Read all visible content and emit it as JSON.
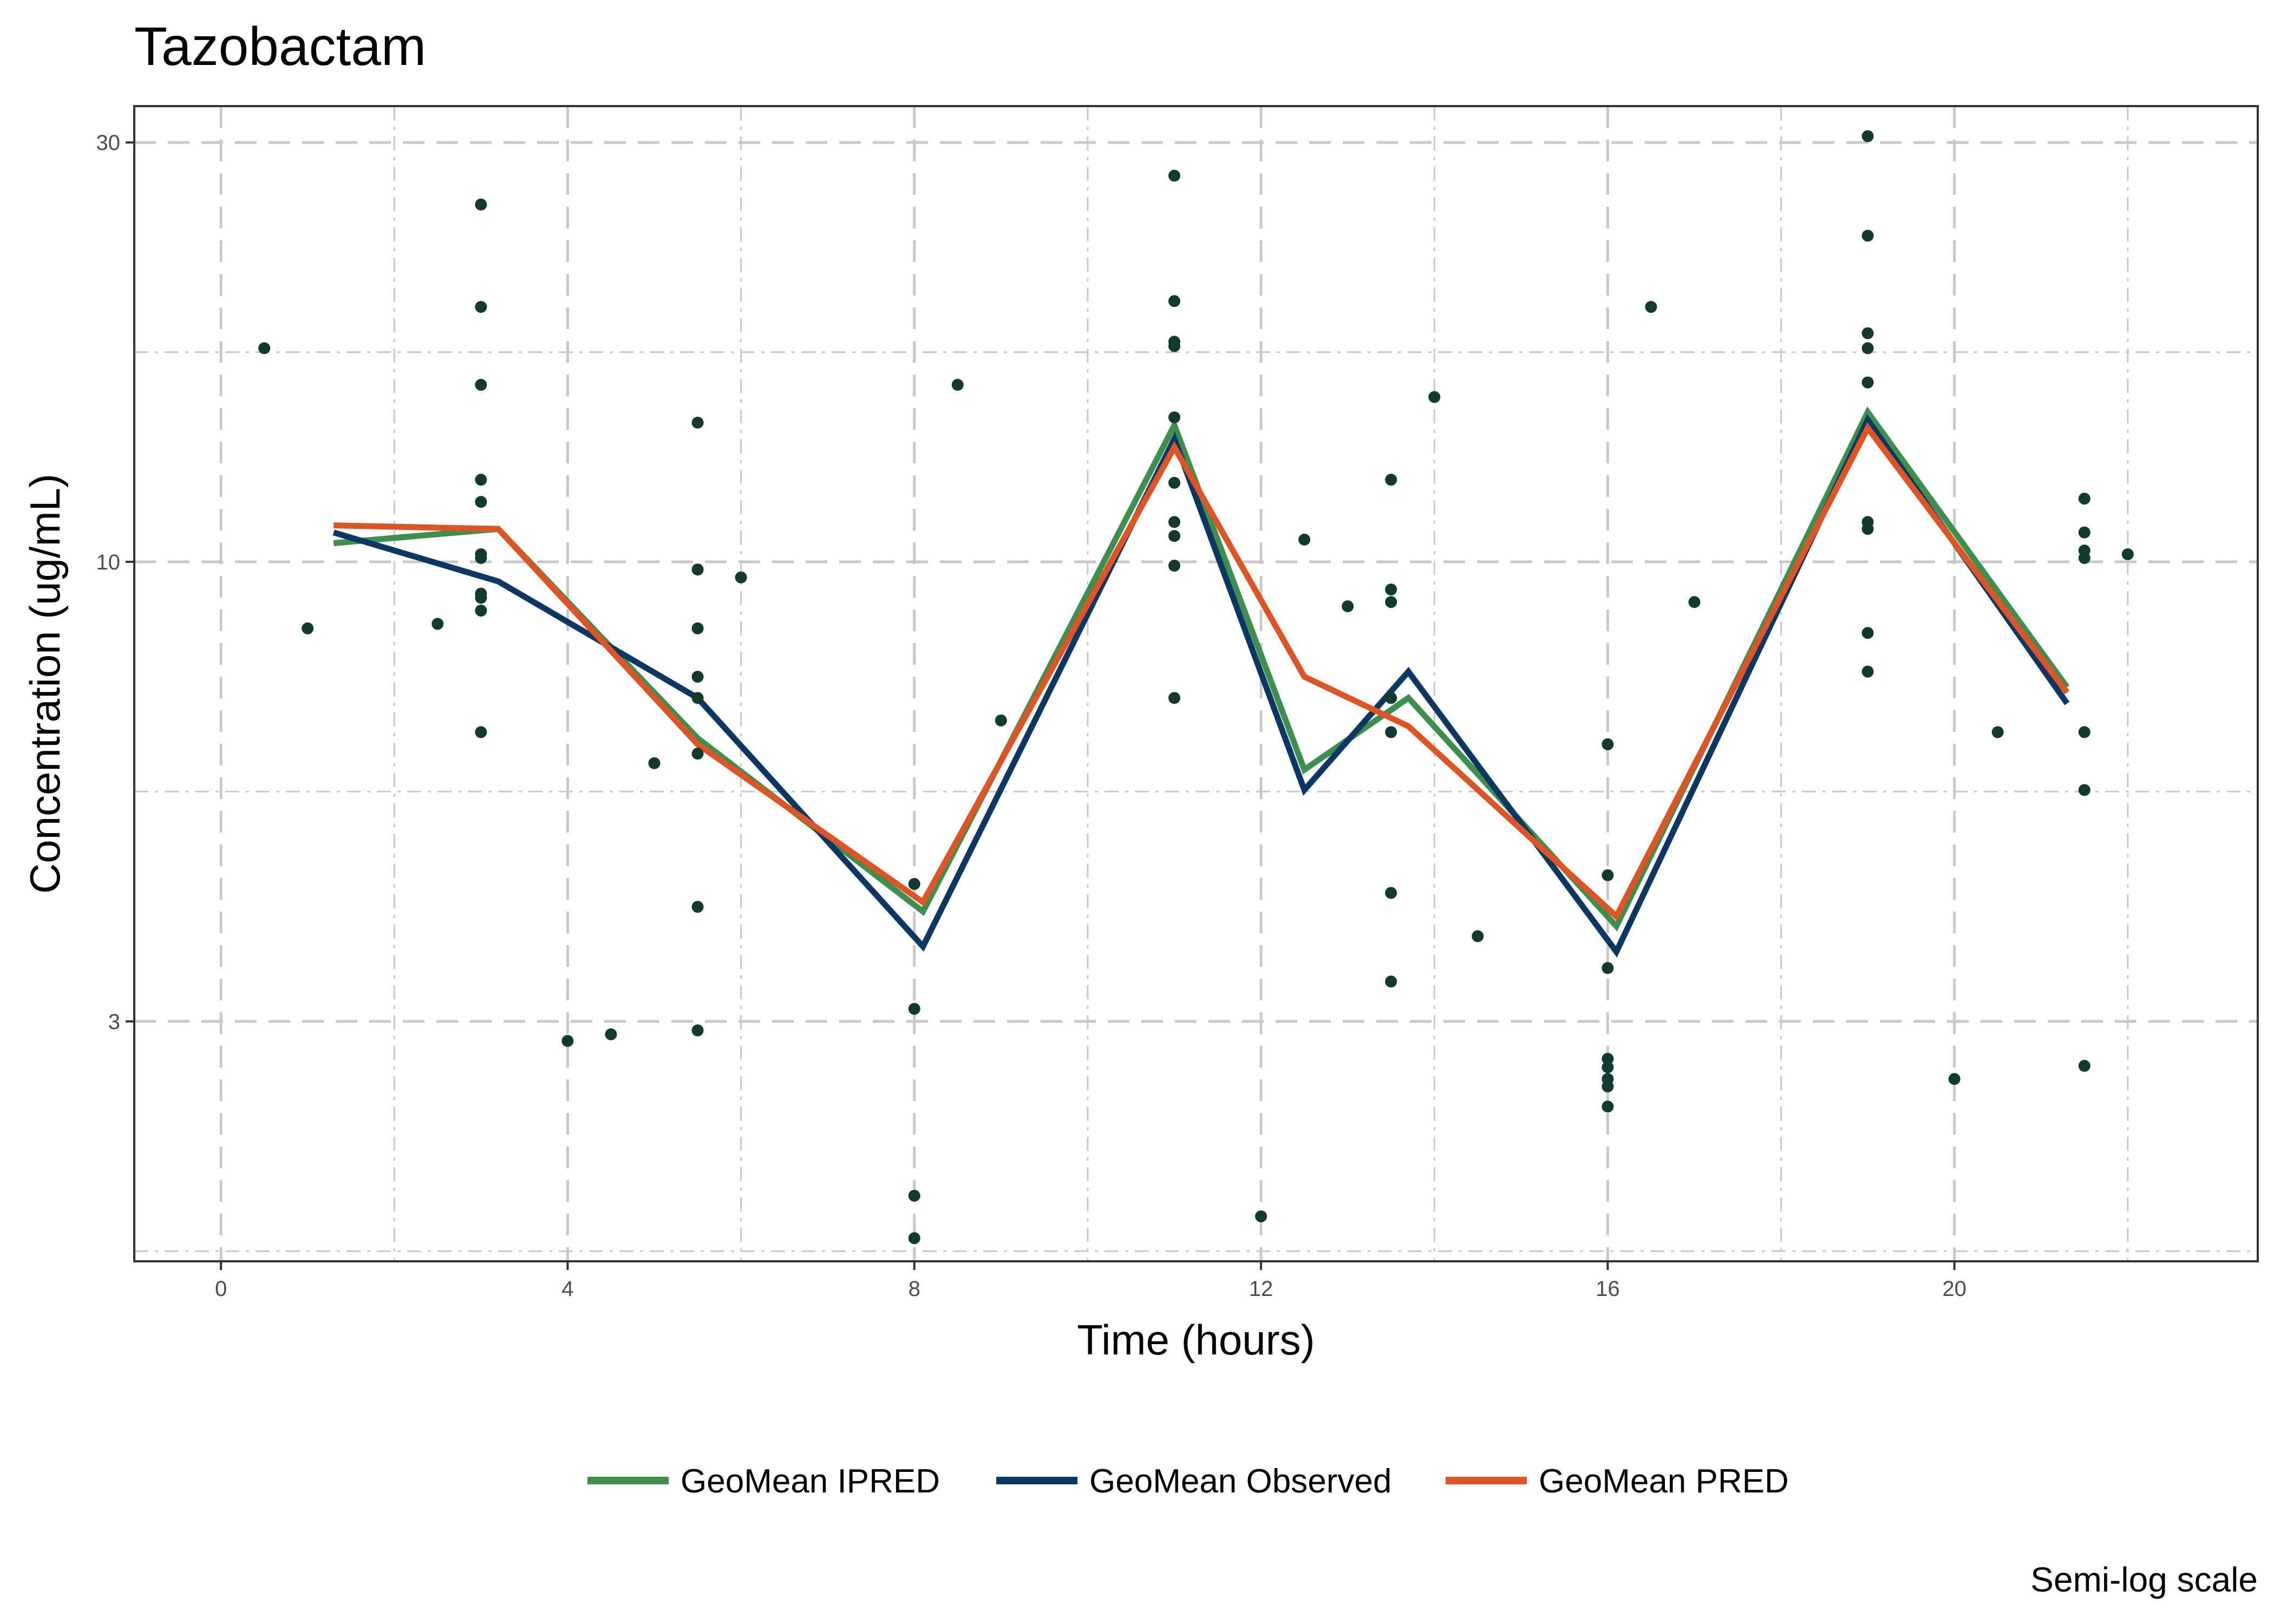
{
  "chart_data": {
    "type": "line",
    "title": "Tazobactam",
    "xlabel": "Time (hours)",
    "ylabel": "Concentration (ug/mL)",
    "caption": "Semi-log scale",
    "y_scale": "log",
    "xlim": [
      -1.0,
      23.5
    ],
    "ylim": [
      1.6,
      33
    ],
    "x_ticks": [
      0,
      4,
      8,
      12,
      16,
      20
    ],
    "y_ticks": [
      3,
      10,
      30
    ],
    "grid": true,
    "legend_position": "bottom",
    "colors": {
      "points": "#123a2e",
      "ipred": "#3e8f4f",
      "observed": "#0c3763",
      "pred": "#dd5527",
      "grid": "#c8c8c8"
    },
    "series": [
      {
        "name": "GeoMean IPRED",
        "color": "#3e8f4f",
        "x": [
          1.3,
          3.2,
          5.5,
          8.1,
          11.0,
          12.5,
          13.7,
          16.1,
          19.0,
          21.3
        ],
        "y": [
          10.5,
          10.9,
          6.3,
          4.0,
          14.3,
          5.8,
          7.0,
          3.85,
          14.8,
          7.2
        ]
      },
      {
        "name": "GeoMean Observed",
        "color": "#0c3763",
        "x": [
          1.3,
          3.2,
          5.5,
          8.1,
          11.0,
          12.5,
          13.7,
          16.1,
          19.0,
          21.3
        ],
        "y": [
          10.8,
          9.5,
          7.0,
          3.65,
          13.8,
          5.5,
          7.5,
          3.6,
          14.5,
          6.9
        ]
      },
      {
        "name": "GeoMean PRED",
        "color": "#dd5527",
        "x": [
          1.3,
          3.2,
          5.5,
          8.1,
          11.0,
          12.5,
          13.7,
          16.1,
          19.0,
          21.3
        ],
        "y": [
          11.0,
          10.9,
          6.2,
          4.1,
          13.5,
          7.4,
          6.5,
          3.95,
          14.2,
          7.1
        ]
      }
    ],
    "points": [
      {
        "x": 0.5,
        "y": 17.5
      },
      {
        "x": 1.0,
        "y": 8.4
      },
      {
        "x": 2.5,
        "y": 8.5
      },
      {
        "x": 3.0,
        "y": 25.5
      },
      {
        "x": 3.0,
        "y": 19.5
      },
      {
        "x": 3.0,
        "y": 15.9
      },
      {
        "x": 3.0,
        "y": 12.4
      },
      {
        "x": 3.0,
        "y": 11.7
      },
      {
        "x": 3.0,
        "y": 10.2
      },
      {
        "x": 3.0,
        "y": 10.1
      },
      {
        "x": 3.0,
        "y": 9.2
      },
      {
        "x": 3.0,
        "y": 9.1
      },
      {
        "x": 3.0,
        "y": 8.8
      },
      {
        "x": 3.0,
        "y": 6.4
      },
      {
        "x": 4.0,
        "y": 2.85
      },
      {
        "x": 4.5,
        "y": 2.9
      },
      {
        "x": 5.0,
        "y": 5.9
      },
      {
        "x": 5.5,
        "y": 14.4
      },
      {
        "x": 5.5,
        "y": 9.8
      },
      {
        "x": 5.5,
        "y": 8.4
      },
      {
        "x": 5.5,
        "y": 7.4
      },
      {
        "x": 5.5,
        "y": 7.0
      },
      {
        "x": 5.5,
        "y": 6.05
      },
      {
        "x": 5.5,
        "y": 4.05
      },
      {
        "x": 5.5,
        "y": 2.93
      },
      {
        "x": 6.0,
        "y": 9.6
      },
      {
        "x": 8.0,
        "y": 4.3
      },
      {
        "x": 8.0,
        "y": 3.1
      },
      {
        "x": 8.0,
        "y": 1.9
      },
      {
        "x": 8.0,
        "y": 1.7
      },
      {
        "x": 8.5,
        "y": 15.9
      },
      {
        "x": 9.0,
        "y": 6.6
      },
      {
        "x": 11.0,
        "y": 27.5
      },
      {
        "x": 11.0,
        "y": 19.8
      },
      {
        "x": 11.0,
        "y": 17.8
      },
      {
        "x": 11.0,
        "y": 17.6
      },
      {
        "x": 11.0,
        "y": 14.6
      },
      {
        "x": 11.0,
        "y": 12.3
      },
      {
        "x": 11.0,
        "y": 11.1
      },
      {
        "x": 11.0,
        "y": 10.7
      },
      {
        "x": 11.0,
        "y": 9.9
      },
      {
        "x": 11.0,
        "y": 7.0
      },
      {
        "x": 12.0,
        "y": 1.8
      },
      {
        "x": 12.5,
        "y": 10.6
      },
      {
        "x": 13.0,
        "y": 8.9
      },
      {
        "x": 13.5,
        "y": 12.4
      },
      {
        "x": 13.5,
        "y": 9.3
      },
      {
        "x": 13.5,
        "y": 9.0
      },
      {
        "x": 13.5,
        "y": 7.0
      },
      {
        "x": 13.5,
        "y": 6.4
      },
      {
        "x": 13.5,
        "y": 4.2
      },
      {
        "x": 13.5,
        "y": 3.33
      },
      {
        "x": 14.0,
        "y": 15.4
      },
      {
        "x": 14.5,
        "y": 3.75
      },
      {
        "x": 16.0,
        "y": 6.2
      },
      {
        "x": 16.0,
        "y": 4.4
      },
      {
        "x": 16.0,
        "y": 3.45
      },
      {
        "x": 16.0,
        "y": 2.72
      },
      {
        "x": 16.0,
        "y": 2.66
      },
      {
        "x": 16.0,
        "y": 2.58
      },
      {
        "x": 16.0,
        "y": 2.53
      },
      {
        "x": 16.0,
        "y": 2.4
      },
      {
        "x": 16.5,
        "y": 19.5
      },
      {
        "x": 17.0,
        "y": 9.0
      },
      {
        "x": 19.0,
        "y": 30.5
      },
      {
        "x": 19.0,
        "y": 23.5
      },
      {
        "x": 19.0,
        "y": 18.2
      },
      {
        "x": 19.0,
        "y": 17.5
      },
      {
        "x": 19.0,
        "y": 16.0
      },
      {
        "x": 19.0,
        "y": 11.1
      },
      {
        "x": 19.0,
        "y": 10.9
      },
      {
        "x": 19.0,
        "y": 8.3
      },
      {
        "x": 19.0,
        "y": 7.5
      },
      {
        "x": 20.0,
        "y": 2.58
      },
      {
        "x": 20.5,
        "y": 6.4
      },
      {
        "x": 21.5,
        "y": 11.8
      },
      {
        "x": 21.5,
        "y": 10.8
      },
      {
        "x": 21.5,
        "y": 10.3
      },
      {
        "x": 21.5,
        "y": 10.1
      },
      {
        "x": 21.5,
        "y": 6.4
      },
      {
        "x": 21.5,
        "y": 5.5
      },
      {
        "x": 21.5,
        "y": 2.67
      },
      {
        "x": 22.0,
        "y": 10.2
      }
    ]
  }
}
